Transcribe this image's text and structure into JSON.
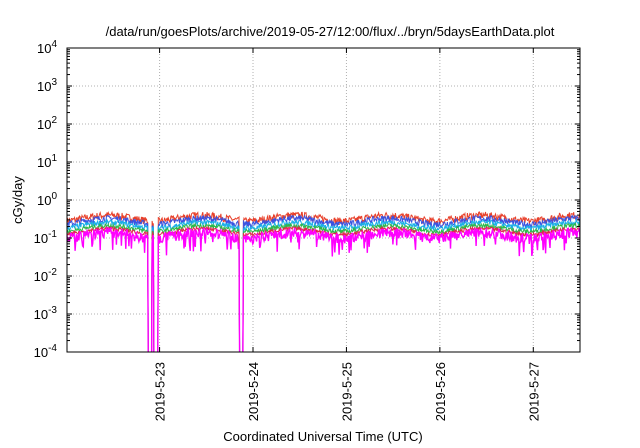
{
  "chart_data": {
    "type": "line",
    "title": "/data/run/goesPlots/archive/2019-05-27/12:00/flux/../bryn/5daysEarthData.plot",
    "xlabel": "Coordinated Universal Time (UTC)",
    "ylabel": "cGy/day",
    "x_range": [
      "2019-05-22 00:13",
      "2019-05-27 12:00"
    ],
    "xticks": [
      {
        "date": "2019-05-23 00:00",
        "label": "2019-5-23"
      },
      {
        "date": "2019-05-24 00:00",
        "label": "2019-5-24"
      },
      {
        "date": "2019-05-25 00:00",
        "label": "2019-5-25"
      },
      {
        "date": "2019-05-26 00:00",
        "label": "2019-5-26"
      },
      {
        "date": "2019-05-27 00:00",
        "label": "2019-5-27"
      }
    ],
    "yscale": "log",
    "ylim": [
      0.0001,
      10000
    ],
    "yticks": [
      {
        "value": 10000,
        "base": "10",
        "exp": "4"
      },
      {
        "value": 1000,
        "base": "10",
        "exp": "3"
      },
      {
        "value": 100,
        "base": "10",
        "exp": "2"
      },
      {
        "value": 10,
        "base": "10",
        "exp": "1"
      },
      {
        "value": 1,
        "base": "10",
        "exp": "0"
      },
      {
        "value": 0.1,
        "base": "10",
        "exp": "-1"
      },
      {
        "value": 0.01,
        "base": "10",
        "exp": "-2"
      },
      {
        "value": 0.001,
        "base": "10",
        "exp": "-3"
      },
      {
        "value": 0.0001,
        "base": "10",
        "exp": "-4"
      }
    ],
    "grid": true,
    "legend": "none",
    "series": [
      {
        "color": "#e8402a",
        "base": 0.34,
        "spread": 0.22
      },
      {
        "color": "#3a52e0",
        "base": 0.28,
        "spread": 0.2
      },
      {
        "color": "#1ab0e8",
        "base": 0.22,
        "spread": 0.16
      },
      {
        "color": "#2db84a",
        "base": 0.18,
        "spread": 0.14
      },
      {
        "color": "#e0284a",
        "base": 0.15,
        "spread": 0.12
      },
      {
        "color": "#ff00ff",
        "base": 0.12,
        "spread": 0.3
      }
    ],
    "dropouts": [
      "2019-05-22 21:30",
      "2019-05-22 23:00",
      "2019-05-23 21:00"
    ]
  }
}
